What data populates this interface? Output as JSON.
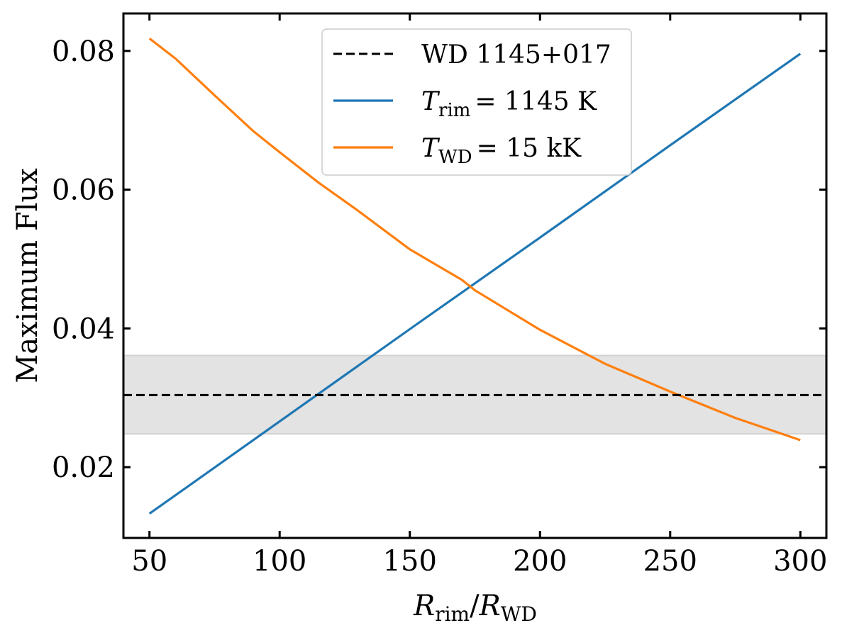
{
  "chart_data": {
    "type": "line",
    "title": "",
    "xlabel": {
      "main": "R",
      "sub": "rim",
      "sep": "/",
      "main2": "R",
      "sub2": "WD"
    },
    "ylabel": "Maximum Flux",
    "xlim": [
      40,
      310
    ],
    "ylim": [
      0.0098,
      0.0854
    ],
    "x_ticks": [
      {
        "value": 50,
        "label": "50"
      },
      {
        "value": 100,
        "label": "100"
      },
      {
        "value": 150,
        "label": "150"
      },
      {
        "value": 200,
        "label": "200"
      },
      {
        "value": 250,
        "label": "250"
      },
      {
        "value": 300,
        "label": "300"
      }
    ],
    "y_ticks": [
      {
        "value": 0.02,
        "label": "0.02"
      },
      {
        "value": 0.04,
        "label": "0.04"
      },
      {
        "value": 0.06,
        "label": "0.06"
      },
      {
        "value": 0.08,
        "label": "0.08"
      }
    ],
    "grid": false,
    "legend_position": "top-center",
    "band": {
      "name": "WD 1145+017 uncertainty",
      "y0": 0.0248,
      "y1": 0.0361,
      "color": "#e3e3e3",
      "edge_color": "#d2d2d2"
    },
    "hline": {
      "name": "WD 1145+017",
      "y": 0.0304,
      "color": "#000000",
      "style": "dashed"
    },
    "series": [
      {
        "name": "T_rim = 1145 K",
        "legend_main": "T",
        "legend_sub": "rim",
        "legend_rest": "= 1145 K",
        "color": "#1f77b4",
        "x": [
          50,
          100,
          150,
          200,
          250,
          300
        ],
        "y": [
          0.0133,
          0.0266,
          0.0399,
          0.0531,
          0.0664,
          0.0796
        ]
      },
      {
        "name": "T_WD = 15 kK",
        "legend_main": "T",
        "legend_sub": "WD",
        "legend_rest": "= 15 kK",
        "color": "#ff7f0e",
        "x": [
          50,
          60,
          75,
          90,
          100,
          115,
          130,
          150,
          170,
          175,
          200,
          225,
          250,
          275,
          300
        ],
        "y": [
          0.0818,
          0.0789,
          0.0736,
          0.0684,
          0.0654,
          0.061,
          0.057,
          0.0514,
          0.047,
          0.0455,
          0.0398,
          0.0349,
          0.0309,
          0.0271,
          0.0239
        ]
      }
    ],
    "legend": [
      {
        "kind": "hline",
        "label": "WD 1145+017"
      },
      {
        "kind": "series",
        "index": 0
      },
      {
        "kind": "series",
        "index": 1
      }
    ]
  }
}
